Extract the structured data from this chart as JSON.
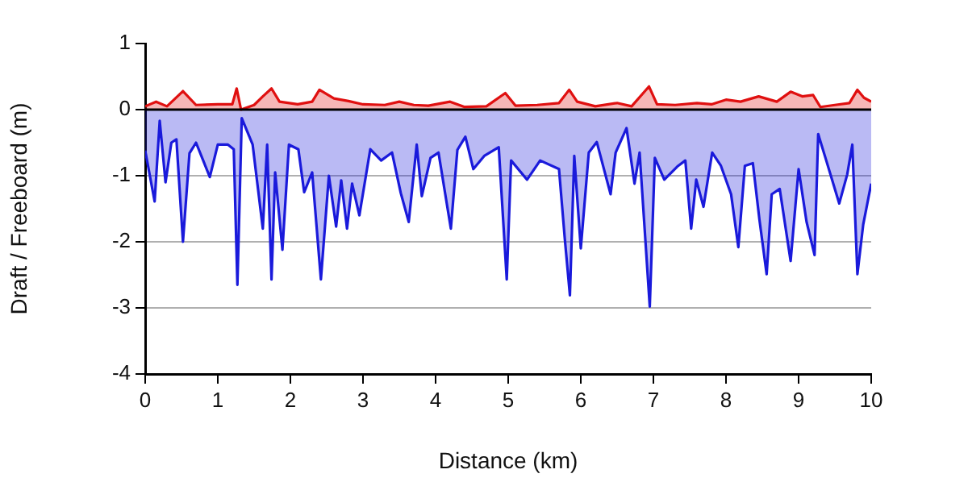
{
  "chart_data": {
    "type": "area",
    "xlabel": "Distance (km)",
    "ylabel": "Draft / Freeboard (m)",
    "xlim": [
      0,
      10
    ],
    "xticks": [
      0,
      1,
      2,
      3,
      4,
      5,
      6,
      7,
      8,
      9,
      10
    ],
    "ylim": [
      -4,
      1
    ],
    "yticks": [
      -4,
      -3,
      -2,
      -1,
      0,
      1
    ],
    "grid": "y",
    "legend": false,
    "ref_lines": [
      {
        "axis": "y",
        "value": 0,
        "color": "#000000"
      }
    ],
    "series": [
      {
        "color": "#e01010",
        "x": [
          0,
          0.15,
          0.3,
          0.52,
          0.7,
          1.0,
          1.2,
          1.26,
          1.32,
          1.5,
          1.62,
          1.74,
          1.85,
          2.1,
          2.3,
          2.4,
          2.6,
          2.8,
          3.0,
          3.3,
          3.5,
          3.7,
          3.9,
          4.2,
          4.4,
          4.7,
          4.96,
          5.1,
          5.4,
          5.7,
          5.84,
          5.95,
          6.2,
          6.5,
          6.7,
          6.94,
          7.05,
          7.3,
          7.6,
          7.8,
          8.0,
          8.2,
          8.45,
          8.7,
          8.89,
          9.05,
          9.2,
          9.3,
          9.5,
          9.7,
          9.81,
          9.9,
          10
        ],
        "values": [
          0.05,
          0.12,
          0.05,
          0.28,
          0.07,
          0.08,
          0.08,
          0.32,
          0.0,
          0.07,
          0.2,
          0.32,
          0.12,
          0.08,
          0.12,
          0.3,
          0.17,
          0.13,
          0.08,
          0.07,
          0.12,
          0.07,
          0.06,
          0.12,
          0.04,
          0.05,
          0.25,
          0.06,
          0.07,
          0.1,
          0.3,
          0.12,
          0.05,
          0.1,
          0.05,
          0.35,
          0.08,
          0.07,
          0.1,
          0.08,
          0.15,
          0.12,
          0.2,
          0.12,
          0.27,
          0.2,
          0.22,
          0.04,
          0.07,
          0.1,
          0.3,
          0.18,
          0.12
        ]
      },
      {
        "color": "#1a1adb",
        "x": [
          0,
          0.13,
          0.2,
          0.28,
          0.36,
          0.43,
          0.52,
          0.61,
          0.7,
          0.89,
          1.0,
          1.14,
          1.22,
          1.27,
          1.33,
          1.48,
          1.62,
          1.68,
          1.74,
          1.79,
          1.89,
          1.98,
          2.11,
          2.19,
          2.3,
          2.42,
          2.53,
          2.63,
          2.7,
          2.78,
          2.85,
          2.95,
          3.1,
          3.25,
          3.4,
          3.52,
          3.63,
          3.74,
          3.81,
          3.93,
          4.04,
          4.21,
          4.3,
          4.41,
          4.52,
          4.67,
          4.87,
          4.98,
          5.04,
          5.26,
          5.44,
          5.7,
          5.78,
          5.85,
          5.91,
          6.0,
          6.11,
          6.22,
          6.41,
          6.48,
          6.63,
          6.74,
          6.81,
          6.95,
          7.02,
          7.15,
          7.33,
          7.44,
          7.52,
          7.59,
          7.69,
          7.81,
          7.93,
          8.07,
          8.17,
          8.26,
          8.37,
          8.46,
          8.56,
          8.63,
          8.74,
          8.89,
          9.0,
          9.11,
          9.22,
          9.27,
          9.37,
          9.56,
          9.67,
          9.74,
          9.81,
          9.89,
          10
        ],
        "values": [
          -0.62,
          -1.39,
          -0.17,
          -1.1,
          -0.5,
          -0.45,
          -2.0,
          -0.66,
          -0.5,
          -1.02,
          -0.53,
          -0.53,
          -0.6,
          -2.65,
          -0.13,
          -0.53,
          -1.8,
          -0.53,
          -2.57,
          -0.95,
          -2.12,
          -0.53,
          -0.6,
          -1.25,
          -0.95,
          -2.57,
          -1.0,
          -1.77,
          -1.07,
          -1.8,
          -1.12,
          -1.6,
          -0.6,
          -0.77,
          -0.65,
          -1.26,
          -1.7,
          -0.53,
          -1.31,
          -0.73,
          -0.65,
          -1.8,
          -0.61,
          -0.41,
          -0.9,
          -0.7,
          -0.57,
          -2.57,
          -0.77,
          -1.06,
          -0.77,
          -0.9,
          -1.96,
          -2.81,
          -0.7,
          -2.1,
          -0.65,
          -0.49,
          -1.28,
          -0.65,
          -0.28,
          -1.12,
          -0.65,
          -2.98,
          -0.73,
          -1.06,
          -0.86,
          -0.77,
          -1.8,
          -1.06,
          -1.47,
          -0.65,
          -0.85,
          -1.28,
          -2.08,
          -0.85,
          -0.81,
          -1.66,
          -2.49,
          -1.28,
          -1.2,
          -2.29,
          -0.9,
          -1.7,
          -2.2,
          -0.37,
          -0.73,
          -1.42,
          -0.98,
          -0.53,
          -2.49,
          -1.74,
          -1.12
        ]
      }
    ]
  }
}
